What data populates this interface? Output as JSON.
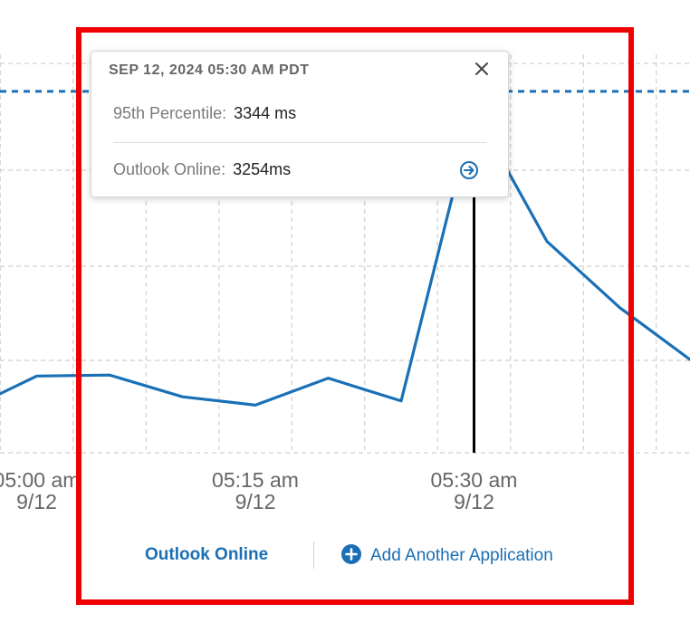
{
  "chart_data": {
    "type": "line",
    "x": [
      "04:55",
      "05:00",
      "05:05",
      "05:10",
      "05:15",
      "05:20",
      "05:25",
      "05:30",
      "05:35",
      "05:40",
      "05:45"
    ],
    "series": [
      {
        "name": "Outlook Online",
        "values": [
          1800,
          1970,
          1975,
          1870,
          1830,
          1960,
          1850,
          3254,
          2620,
          2300,
          2040
        ]
      }
    ],
    "x_ticks": [
      {
        "x": "05:00",
        "time": "05:00 am",
        "date": "9/12"
      },
      {
        "x": "05:15",
        "time": "05:15 am",
        "date": "9/12"
      },
      {
        "x": "05:30",
        "time": "05:30 am",
        "date": "9/12"
      }
    ],
    "reference_line": {
      "label": "95th Percentile",
      "value": 3344
    },
    "ylim": [
      1600,
      3400
    ],
    "grid": true,
    "hover_x": "05:30",
    "colors": {
      "series": "#1a70b7",
      "reference": "#1a70b7",
      "cursor": "#000000",
      "highlight": "#ee0000"
    }
  },
  "tooltip": {
    "date": "SEP 12, 2024 05:30 AM PDT",
    "percentile_label": "95th Percentile:",
    "percentile_value": "3344 ms",
    "series_label": "Outlook Online:",
    "series_value": "3254ms",
    "close_icon": "close-icon",
    "arrow_icon": "arrow-right-circle-icon"
  },
  "legend": {
    "series_label": "Outlook Online",
    "add_label": "Add Another Application",
    "add_icon": "plus-circle-icon"
  }
}
